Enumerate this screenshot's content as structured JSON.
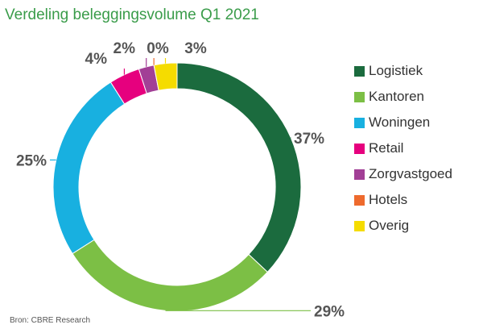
{
  "title": "Verdeling beleggingsvolume Q1 2021",
  "source": "Bron: CBRE Research",
  "chart_data": {
    "type": "pie",
    "donut": true,
    "title": "Verdeling beleggingsvolume Q1 2021",
    "legend_position": "right",
    "series": [
      {
        "name": "Logistiek",
        "value": 37,
        "label": "37%",
        "color": "#1b6b3e"
      },
      {
        "name": "Kantoren",
        "value": 29,
        "label": "29%",
        "color": "#7cbf45"
      },
      {
        "name": "Woningen",
        "value": 25,
        "label": "25%",
        "color": "#18b0e0"
      },
      {
        "name": "Retail",
        "value": 4,
        "label": "4%",
        "color": "#e6007e"
      },
      {
        "name": "Zorgvastgoed",
        "value": 2,
        "label": "2%",
        "color": "#a23f96"
      },
      {
        "name": "Hotels",
        "value": 0,
        "label": "0%",
        "color": "#ee6a2d"
      },
      {
        "name": "Overig",
        "value": 3,
        "label": "3%",
        "color": "#f5dc00"
      }
    ]
  }
}
